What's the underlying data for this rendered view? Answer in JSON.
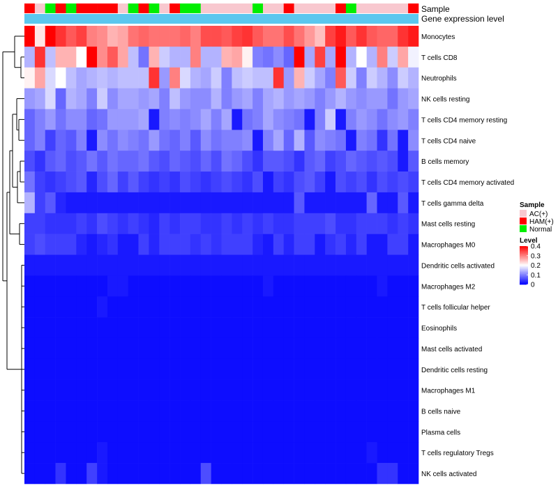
{
  "chart_data": {
    "type": "heatmap",
    "title": "",
    "annotations": [
      {
        "name": "Sample",
        "kind": "categorical"
      },
      {
        "name": "Gene expression level",
        "kind": "bar"
      }
    ],
    "samples": [
      "HAM(+)",
      "AC(+)",
      "Normal",
      "HAM(+)",
      "Normal",
      "HAM(+)",
      "HAM(+)",
      "HAM(+)",
      "HAM(+)",
      "AC(+)",
      "Normal",
      "HAM(+)",
      "Normal",
      "AC(+)",
      "HAM(+)",
      "Normal",
      "Normal",
      "AC(+)",
      "AC(+)",
      "AC(+)",
      "AC(+)",
      "AC(+)",
      "Normal",
      "AC(+)",
      "AC(+)",
      "HAM(+)",
      "AC(+)",
      "AC(+)",
      "AC(+)",
      "AC(+)",
      "HAM(+)",
      "Normal",
      "AC(+)",
      "AC(+)",
      "AC(+)",
      "AC(+)",
      "AC(+)",
      "HAM(+)"
    ],
    "rows": [
      "Monocytes",
      "T cells CD8",
      "Neutrophils",
      "NK cells resting",
      "T cells CD4 memory resting",
      "T cells CD4 naive",
      "B cells memory",
      "T cells CD4 memory activated",
      "T cells gamma delta",
      "Mast cells resting",
      "Macrophages M0",
      "Dendritic cells activated",
      "Macrophages M2",
      "T cells follicular helper",
      "Eosinophils",
      "Mast cells activated",
      "Dendritic cells resting",
      "Macrophages M1",
      "B cells naive",
      "Plasma cells",
      "T cells regulatory  Tregs",
      "NK cells activated"
    ],
    "values": [
      [
        0.4,
        0.22,
        0.4,
        0.36,
        0.33,
        0.35,
        0.3,
        0.29,
        0.26,
        0.27,
        0.31,
        0.32,
        0.31,
        0.31,
        0.31,
        0.32,
        0.3,
        0.34,
        0.34,
        0.33,
        0.35,
        0.36,
        0.33,
        0.31,
        0.31,
        0.34,
        0.31,
        0.28,
        0.25,
        0.35,
        0.38,
        0.33,
        0.36,
        0.33,
        0.32,
        0.32,
        0.36,
        0.38
      ],
      [
        0.14,
        0.36,
        0.15,
        0.26,
        0.26,
        0.2,
        0.4,
        0.29,
        0.33,
        0.27,
        0.15,
        0.09,
        0.26,
        0.16,
        0.14,
        0.14,
        0.3,
        0.14,
        0.14,
        0.26,
        0.27,
        0.21,
        0.1,
        0.09,
        0.11,
        0.08,
        0.4,
        0.13,
        0.35,
        0.13,
        0.4,
        0.14,
        0.2,
        0.14,
        0.3,
        0.16,
        0.27,
        0.19
      ],
      [
        0.21,
        0.27,
        0.17,
        0.2,
        0.15,
        0.13,
        0.14,
        0.15,
        0.14,
        0.15,
        0.15,
        0.15,
        0.36,
        0.12,
        0.3,
        0.17,
        0.14,
        0.13,
        0.16,
        0.1,
        0.15,
        0.16,
        0.15,
        0.15,
        0.36,
        0.12,
        0.26,
        0.16,
        0.13,
        0.1,
        0.33,
        0.16,
        0.1,
        0.16,
        0.14,
        0.11,
        0.16,
        0.14
      ],
      [
        0.12,
        0.13,
        0.17,
        0.08,
        0.14,
        0.13,
        0.1,
        0.16,
        0.11,
        0.13,
        0.13,
        0.12,
        0.13,
        0.1,
        0.15,
        0.12,
        0.11,
        0.11,
        0.14,
        0.1,
        0.12,
        0.13,
        0.1,
        0.13,
        0.14,
        0.12,
        0.13,
        0.12,
        0.1,
        0.12,
        0.14,
        0.12,
        0.11,
        0.12,
        0.12,
        0.09,
        0.12,
        0.13
      ],
      [
        0.08,
        0.1,
        0.12,
        0.09,
        0.11,
        0.11,
        0.08,
        0.09,
        0.12,
        0.12,
        0.12,
        0.13,
        0.02,
        0.1,
        0.11,
        0.1,
        0.11,
        0.13,
        0.1,
        0.13,
        0.02,
        0.09,
        0.1,
        0.13,
        0.11,
        0.1,
        0.09,
        0.02,
        0.1,
        0.16,
        0.02,
        0.1,
        0.12,
        0.11,
        0.09,
        0.11,
        0.12,
        0.1
      ],
      [
        0.08,
        0.1,
        0.05,
        0.08,
        0.07,
        0.1,
        0.02,
        0.11,
        0.09,
        0.11,
        0.1,
        0.09,
        0.12,
        0.09,
        0.08,
        0.1,
        0.07,
        0.11,
        0.09,
        0.1,
        0.1,
        0.11,
        0.02,
        0.1,
        0.13,
        0.08,
        0.14,
        0.07,
        0.11,
        0.1,
        0.09,
        0.02,
        0.1,
        0.09,
        0.04,
        0.09,
        0.02,
        0.11
      ],
      [
        0.06,
        0.04,
        0.07,
        0.08,
        0.06,
        0.07,
        0.09,
        0.07,
        0.09,
        0.08,
        0.08,
        0.09,
        0.07,
        0.06,
        0.08,
        0.07,
        0.06,
        0.08,
        0.06,
        0.09,
        0.08,
        0.06,
        0.04,
        0.07,
        0.07,
        0.06,
        0.04,
        0.07,
        0.08,
        0.05,
        0.06,
        0.08,
        0.07,
        0.06,
        0.07,
        0.06,
        0.02,
        0.07
      ],
      [
        0.09,
        0.05,
        0.04,
        0.05,
        0.06,
        0.07,
        0.03,
        0.06,
        0.08,
        0.05,
        0.07,
        0.05,
        0.04,
        0.05,
        0.04,
        0.06,
        0.05,
        0.04,
        0.05,
        0.06,
        0.05,
        0.04,
        0.06,
        0.02,
        0.05,
        0.04,
        0.06,
        0.07,
        0.05,
        0.02,
        0.06,
        0.05,
        0.06,
        0.04,
        0.06,
        0.05,
        0.06,
        0.05
      ],
      [
        0.14,
        0.05,
        0.07,
        0.03,
        0.02,
        0.02,
        0.02,
        0.02,
        0.02,
        0.02,
        0.02,
        0.02,
        0.02,
        0.02,
        0.02,
        0.02,
        0.02,
        0.02,
        0.02,
        0.02,
        0.02,
        0.02,
        0.02,
        0.02,
        0.02,
        0.02,
        0.07,
        0.02,
        0.02,
        0.02,
        0.02,
        0.02,
        0.02,
        0.08,
        0.02,
        0.02,
        0.07,
        0.02
      ],
      [
        0.05,
        0.05,
        0.04,
        0.04,
        0.04,
        0.05,
        0.04,
        0.06,
        0.05,
        0.04,
        0.05,
        0.04,
        0.03,
        0.05,
        0.04,
        0.05,
        0.05,
        0.04,
        0.04,
        0.05,
        0.04,
        0.05,
        0.04,
        0.05,
        0.04,
        0.04,
        0.05,
        0.05,
        0.05,
        0.06,
        0.04,
        0.04,
        0.05,
        0.05,
        0.05,
        0.04,
        0.05,
        0.04
      ],
      [
        0.05,
        0.06,
        0.05,
        0.05,
        0.05,
        0.03,
        0.02,
        0.03,
        0.04,
        0.02,
        0.02,
        0.05,
        0.03,
        0.05,
        0.05,
        0.05,
        0.04,
        0.05,
        0.04,
        0.05,
        0.05,
        0.05,
        0.03,
        0.02,
        0.05,
        0.03,
        0.05,
        0.05,
        0.02,
        0.04,
        0.05,
        0.03,
        0.05,
        0.02,
        0.02,
        0.05,
        0.05,
        0.02
      ],
      [
        0.02,
        0.02,
        0.02,
        0.02,
        0.02,
        0.02,
        0.02,
        0.02,
        0.02,
        0.02,
        0.02,
        0.02,
        0.02,
        0.02,
        0.02,
        0.02,
        0.02,
        0.02,
        0.02,
        0.02,
        0.02,
        0.02,
        0.02,
        0.02,
        0.02,
        0.02,
        0.02,
        0.02,
        0.02,
        0.02,
        0.02,
        0.02,
        0.02,
        0.02,
        0.02,
        0.02,
        0.02,
        0.02
      ],
      [
        0.01,
        0.01,
        0.01,
        0.01,
        0.01,
        0.01,
        0.01,
        0.01,
        0.02,
        0.02,
        0.01,
        0.01,
        0.01,
        0.01,
        0.01,
        0.01,
        0.01,
        0.01,
        0.01,
        0.01,
        0.01,
        0.01,
        0.01,
        0.02,
        0.01,
        0.01,
        0.01,
        0.01,
        0.01,
        0.01,
        0.01,
        0.01,
        0.01,
        0.01,
        0.02,
        0.01,
        0.01,
        0.01
      ],
      [
        0.01,
        0.01,
        0.01,
        0.01,
        0.01,
        0.01,
        0.01,
        0.02,
        0.01,
        0.01,
        0.01,
        0.01,
        0.01,
        0.01,
        0.01,
        0.01,
        0.01,
        0.01,
        0.01,
        0.01,
        0.01,
        0.01,
        0.01,
        0.01,
        0.01,
        0.01,
        0.01,
        0.01,
        0.01,
        0.01,
        0.01,
        0.01,
        0.01,
        0.01,
        0.01,
        0.01,
        0.01,
        0.01
      ],
      [
        0.01,
        0.01,
        0.01,
        0.01,
        0.01,
        0.01,
        0.01,
        0.01,
        0.01,
        0.01,
        0.01,
        0.01,
        0.01,
        0.01,
        0.01,
        0.01,
        0.01,
        0.01,
        0.01,
        0.01,
        0.01,
        0.01,
        0.01,
        0.01,
        0.01,
        0.01,
        0.01,
        0.01,
        0.01,
        0.01,
        0.01,
        0.01,
        0.01,
        0.01,
        0.01,
        0.01,
        0.01,
        0.01
      ],
      [
        0.01,
        0.01,
        0.01,
        0.01,
        0.01,
        0.01,
        0.01,
        0.01,
        0.01,
        0.01,
        0.01,
        0.01,
        0.01,
        0.01,
        0.01,
        0.01,
        0.01,
        0.01,
        0.01,
        0.01,
        0.01,
        0.01,
        0.01,
        0.01,
        0.01,
        0.01,
        0.01,
        0.01,
        0.01,
        0.01,
        0.01,
        0.01,
        0.01,
        0.01,
        0.01,
        0.01,
        0.01,
        0.01
      ],
      [
        0.01,
        0.01,
        0.01,
        0.01,
        0.01,
        0.01,
        0.01,
        0.01,
        0.01,
        0.01,
        0.01,
        0.01,
        0.01,
        0.01,
        0.01,
        0.01,
        0.01,
        0.01,
        0.01,
        0.01,
        0.01,
        0.01,
        0.01,
        0.01,
        0.01,
        0.01,
        0.01,
        0.01,
        0.01,
        0.01,
        0.01,
        0.01,
        0.01,
        0.01,
        0.01,
        0.01,
        0.01,
        0.01
      ],
      [
        0.01,
        0.01,
        0.01,
        0.01,
        0.01,
        0.01,
        0.01,
        0.01,
        0.01,
        0.01,
        0.01,
        0.01,
        0.01,
        0.01,
        0.01,
        0.01,
        0.01,
        0.01,
        0.01,
        0.01,
        0.01,
        0.01,
        0.01,
        0.01,
        0.01,
        0.01,
        0.01,
        0.01,
        0.01,
        0.01,
        0.01,
        0.01,
        0.01,
        0.01,
        0.01,
        0.01,
        0.01,
        0.01
      ],
      [
        0.01,
        0.01,
        0.01,
        0.01,
        0.01,
        0.01,
        0.01,
        0.01,
        0.01,
        0.01,
        0.01,
        0.01,
        0.01,
        0.01,
        0.01,
        0.01,
        0.01,
        0.01,
        0.01,
        0.01,
        0.01,
        0.01,
        0.01,
        0.01,
        0.01,
        0.01,
        0.01,
        0.01,
        0.01,
        0.01,
        0.01,
        0.01,
        0.01,
        0.01,
        0.01,
        0.01,
        0.01,
        0.01
      ],
      [
        0.01,
        0.01,
        0.01,
        0.01,
        0.01,
        0.01,
        0.01,
        0.01,
        0.01,
        0.01,
        0.01,
        0.01,
        0.01,
        0.01,
        0.01,
        0.01,
        0.01,
        0.01,
        0.01,
        0.01,
        0.01,
        0.01,
        0.01,
        0.01,
        0.01,
        0.01,
        0.01,
        0.01,
        0.01,
        0.01,
        0.01,
        0.01,
        0.01,
        0.01,
        0.01,
        0.01,
        0.01,
        0.01
      ],
      [
        0.01,
        0.01,
        0.01,
        0.01,
        0.01,
        0.01,
        0.01,
        0.02,
        0.01,
        0.01,
        0.01,
        0.01,
        0.01,
        0.01,
        0.01,
        0.01,
        0.01,
        0.01,
        0.01,
        0.01,
        0.01,
        0.01,
        0.01,
        0.01,
        0.01,
        0.01,
        0.01,
        0.01,
        0.01,
        0.01,
        0.01,
        0.01,
        0.01,
        0.02,
        0.01,
        0.01,
        0.01,
        0.01
      ],
      [
        0.01,
        0.01,
        0.01,
        0.04,
        0.01,
        0.01,
        0.05,
        0.02,
        0.01,
        0.01,
        0.01,
        0.01,
        0.01,
        0.01,
        0.01,
        0.01,
        0.01,
        0.06,
        0.01,
        0.01,
        0.01,
        0.01,
        0.01,
        0.01,
        0.01,
        0.01,
        0.01,
        0.01,
        0.01,
        0.01,
        0.01,
        0.01,
        0.01,
        0.01,
        0.04,
        0.04,
        0.01,
        0.01
      ]
    ],
    "legend_sample": {
      "title": "Sample",
      "items": [
        {
          "label": "AC(+)",
          "color": "#f8c8cf"
        },
        {
          "label": "HAM(+)",
          "color": "#ff0000"
        },
        {
          "label": "Normal",
          "color": "#00ee00"
        }
      ]
    },
    "legend_level": {
      "title": "Level",
      "ticks": [
        0.4,
        0.3,
        0.2,
        0.1,
        0
      ],
      "tick_labels": [
        "0.4",
        "0.3",
        "0.2",
        "0.1",
        "0"
      ],
      "range": [
        0,
        0.4
      ]
    },
    "colors": {
      "low": "#0000ff",
      "mid": "#ffffff",
      "high": "#ff0000",
      "expression_bar": "#5bc7ee",
      "dendrogram": "#000000"
    }
  }
}
